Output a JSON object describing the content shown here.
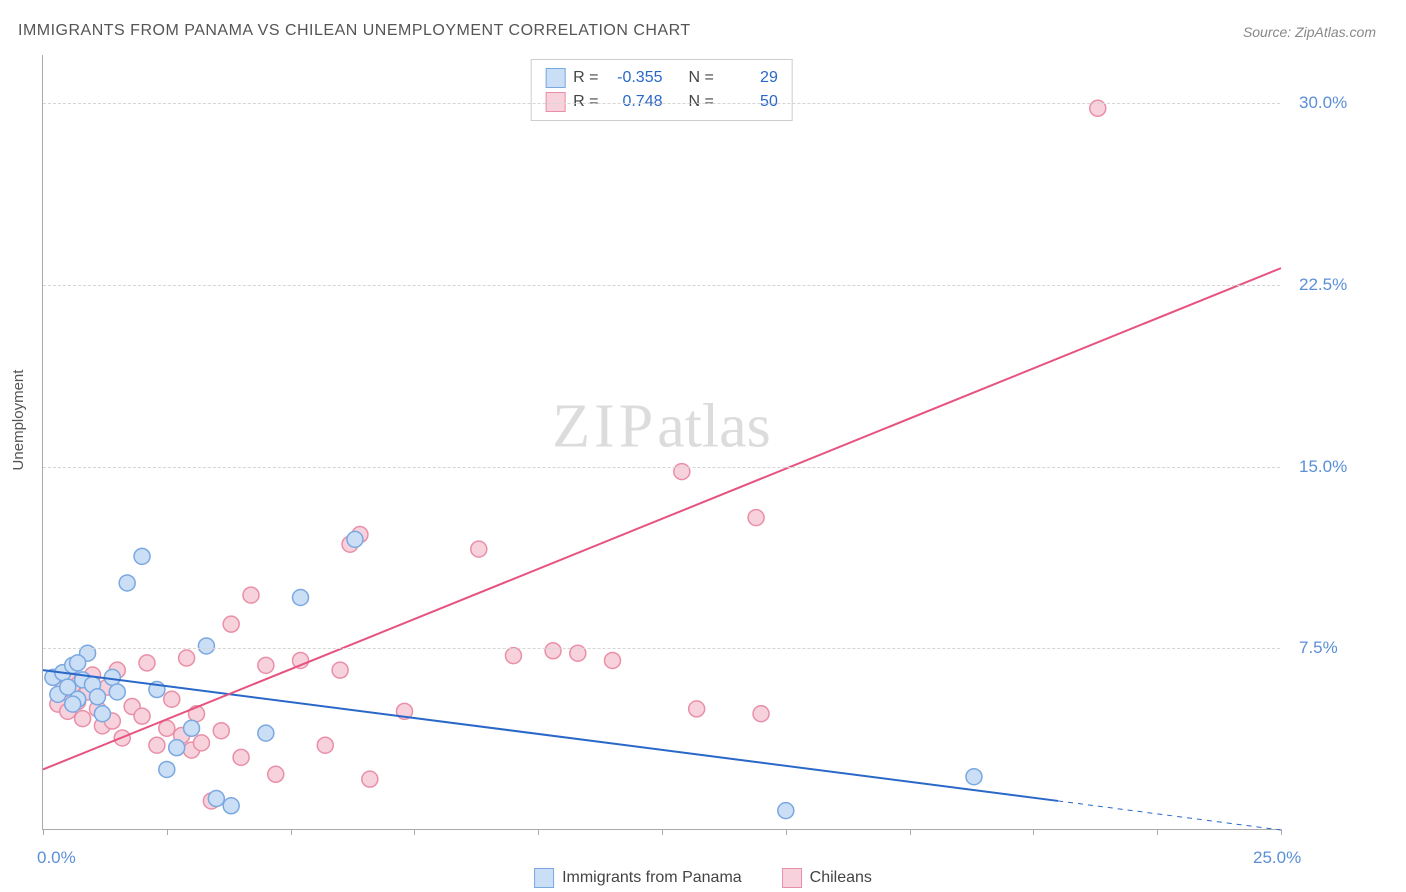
{
  "title": "IMMIGRANTS FROM PANAMA VS CHILEAN UNEMPLOYMENT CORRELATION CHART",
  "source": "Source: ZipAtlas.com",
  "ylabel": "Unemployment",
  "watermark_zip": "ZIP",
  "watermark_atlas": "atlas",
  "chart": {
    "type": "scatter",
    "xlim": [
      0,
      25
    ],
    "ylim": [
      0,
      32
    ],
    "x_ticks": [
      0,
      2.5,
      5,
      7.5,
      10,
      12.5,
      15,
      17.5,
      20,
      22.5,
      25
    ],
    "x_tick_labels": {
      "0": "0.0%",
      "25": "25.0%"
    },
    "y_gridlines": [
      7.5,
      15,
      22.5,
      30
    ],
    "y_tick_labels": {
      "7.5": "7.5%",
      "15": "15.0%",
      "22.5": "22.5%",
      "30": "30.0%"
    },
    "background_color": "#ffffff",
    "grid_color": "#d5d5d5",
    "axis_color": "#aaaaaa",
    "marker_radius": 8,
    "marker_stroke_width": 1.5,
    "line_width": 2,
    "series": [
      {
        "name": "Immigrants from Panama",
        "key": "panama",
        "fill": "#cadef6",
        "stroke": "#7aa8e0",
        "line_color": "#2968c8",
        "R": "-0.355",
        "N": "29",
        "trend": {
          "x1": 0,
          "y1": 6.6,
          "x2": 20.5,
          "y2": 1.2,
          "dash_x2": 25,
          "dash_y2": 0.0
        },
        "points": [
          [
            0.2,
            6.3
          ],
          [
            0.3,
            5.6
          ],
          [
            0.4,
            6.5
          ],
          [
            0.5,
            5.9
          ],
          [
            0.6,
            6.8
          ],
          [
            0.7,
            5.4
          ],
          [
            0.8,
            6.2
          ],
          [
            0.9,
            7.3
          ],
          [
            1.0,
            6.0
          ],
          [
            1.1,
            5.5
          ],
          [
            1.2,
            4.8
          ],
          [
            0.6,
            5.2
          ],
          [
            0.7,
            6.9
          ],
          [
            1.4,
            6.3
          ],
          [
            1.5,
            5.7
          ],
          [
            1.7,
            10.2
          ],
          [
            2.0,
            11.3
          ],
          [
            2.3,
            5.8
          ],
          [
            2.5,
            2.5
          ],
          [
            2.7,
            3.4
          ],
          [
            3.0,
            4.2
          ],
          [
            3.3,
            7.6
          ],
          [
            3.5,
            1.3
          ],
          [
            3.8,
            1.0
          ],
          [
            4.5,
            4.0
          ],
          [
            5.2,
            9.6
          ],
          [
            6.3,
            12.0
          ],
          [
            15.0,
            0.8
          ],
          [
            18.8,
            2.2
          ]
        ]
      },
      {
        "name": "Chileans",
        "key": "chileans",
        "fill": "#f7d2dc",
        "stroke": "#e98fa8",
        "line_color": "#e6537e",
        "R": "0.748",
        "N": "50",
        "trend": {
          "x1": 0,
          "y1": 2.5,
          "x2": 25,
          "y2": 23.2
        },
        "points": [
          [
            0.3,
            5.2
          ],
          [
            0.4,
            5.8
          ],
          [
            0.5,
            4.9
          ],
          [
            0.6,
            6.0
          ],
          [
            0.7,
            5.3
          ],
          [
            0.8,
            4.6
          ],
          [
            0.9,
            5.7
          ],
          [
            1.0,
            6.4
          ],
          [
            1.1,
            5.0
          ],
          [
            1.2,
            4.3
          ],
          [
            1.3,
            5.9
          ],
          [
            1.4,
            4.5
          ],
          [
            1.5,
            6.6
          ],
          [
            1.6,
            3.8
          ],
          [
            1.8,
            5.1
          ],
          [
            2.0,
            4.7
          ],
          [
            2.1,
            6.9
          ],
          [
            2.3,
            3.5
          ],
          [
            2.5,
            4.2
          ],
          [
            2.6,
            5.4
          ],
          [
            2.8,
            3.9
          ],
          [
            2.9,
            7.1
          ],
          [
            3.0,
            3.3
          ],
          [
            3.1,
            4.8
          ],
          [
            3.2,
            3.6
          ],
          [
            3.4,
            1.2
          ],
          [
            3.6,
            4.1
          ],
          [
            3.8,
            8.5
          ],
          [
            4.0,
            3.0
          ],
          [
            4.2,
            9.7
          ],
          [
            4.5,
            6.8
          ],
          [
            4.7,
            2.3
          ],
          [
            5.2,
            7.0
          ],
          [
            5.7,
            3.5
          ],
          [
            6.0,
            6.6
          ],
          [
            6.2,
            11.8
          ],
          [
            6.4,
            12.2
          ],
          [
            6.6,
            2.1
          ],
          [
            7.3,
            4.9
          ],
          [
            8.8,
            11.6
          ],
          [
            9.5,
            7.2
          ],
          [
            10.3,
            7.4
          ],
          [
            10.8,
            7.3
          ],
          [
            11.5,
            7.0
          ],
          [
            12.9,
            14.8
          ],
          [
            13.2,
            5.0
          ],
          [
            14.4,
            12.9
          ],
          [
            14.5,
            4.8
          ],
          [
            21.3,
            29.8
          ],
          [
            0.5,
            6.5
          ]
        ]
      }
    ]
  },
  "legend": {
    "panama_label": "Immigrants from Panama",
    "chileans_label": "Chileans",
    "R_label": "R =",
    "N_label": "N ="
  }
}
